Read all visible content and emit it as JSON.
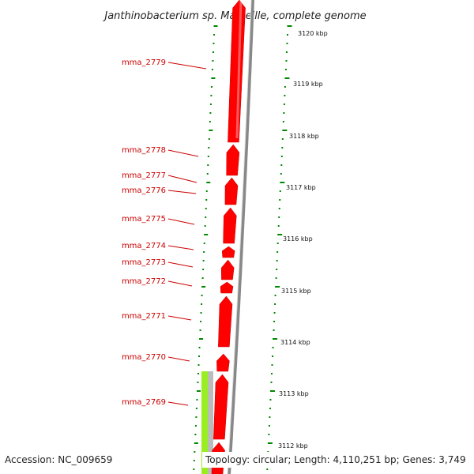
{
  "title": "Janthinobacterium sp. Marseille, complete genome",
  "gene_labels": [
    "mma_2779",
    "mma_2778",
    "mma_2777",
    "mma_2776",
    "mma_2775",
    "mma_2774",
    "mma_2773",
    "mma_2772",
    "mma_2771",
    "mma_2770",
    "mma_2769"
  ],
  "kbp_ticks": [
    "3120 kbp",
    "3119 kbp",
    "3118 kbp",
    "3117 kbp",
    "3116 kbp",
    "3115 kbp",
    "3114 kbp",
    "3113 kbp",
    "3112 kbp"
  ],
  "footer": {
    "accession": "Accession: NC_009659",
    "summary": "Topology: circular; Length: 4,110,251 bp; Genes: 3,749"
  },
  "colors": {
    "cds": "#ff0000",
    "backbone": "#888888",
    "gc_skew": "#99ee22",
    "gc_content": "#bbbbbb",
    "ticks": "#008800",
    "label": "#cc0000"
  }
}
